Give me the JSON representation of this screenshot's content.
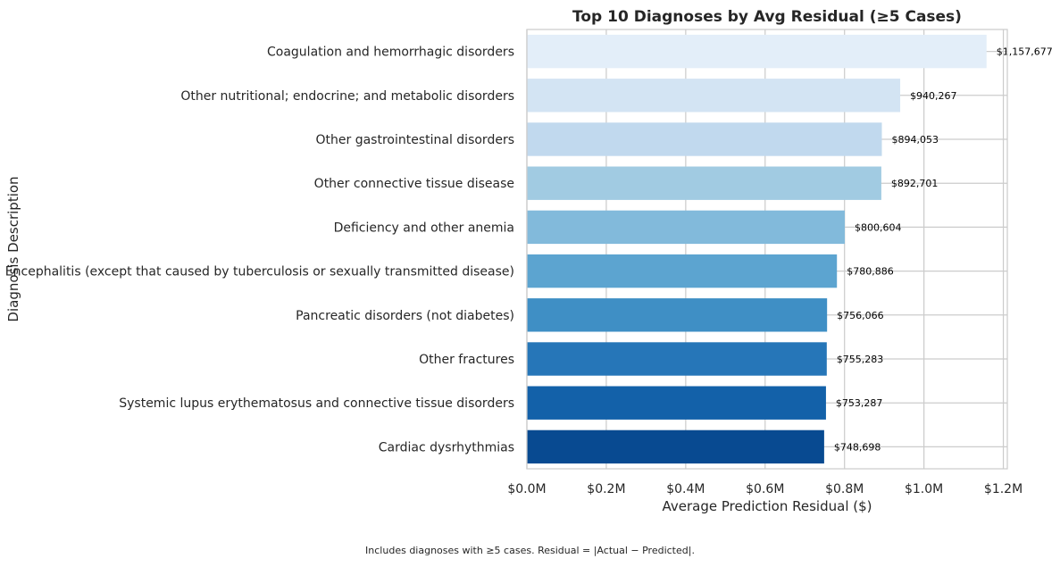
{
  "chart_data": {
    "type": "bar",
    "orientation": "horizontal",
    "title": "Top 10 Diagnoses by Avg Residual (≥5 Cases)",
    "xlabel": "Average Prediction Residual ($)",
    "ylabel": "Diagnosis Description",
    "xlim": [
      0,
      1210000
    ],
    "xticks": [
      0,
      200000,
      400000,
      600000,
      800000,
      1000000,
      1200000
    ],
    "xtick_labels": [
      "$0.0M",
      "$0.2M",
      "$0.4M",
      "$0.6M",
      "$0.8M",
      "$1.0M",
      "$1.2M"
    ],
    "grid": true,
    "categories": [
      "Coagulation and hemorrhagic disorders",
      "Other nutritional; endocrine; and metabolic disorders",
      "Other gastrointestinal disorders",
      "Other connective tissue disease",
      "Deficiency and other anemia",
      "Encephalitis (except that caused by tuberculosis or sexually transmitted disease)",
      "Pancreatic disorders (not diabetes)",
      "Other fractures",
      "Systemic lupus erythematosus and connective tissue disorders",
      "Cardiac dysrhythmias"
    ],
    "values": [
      1157677,
      940267,
      894053,
      892701,
      800604,
      780886,
      756066,
      755283,
      753287,
      748698
    ],
    "data_labels": [
      "$1,157,677",
      "$940,267",
      "$894,053",
      "$892,701",
      "$800,604",
      "$780,886",
      "$756,066",
      "$755,283",
      "$753,287",
      "$748,698"
    ],
    "colors": [
      "#e3eef9",
      "#d3e4f3",
      "#c1d9ee",
      "#a1cbe2",
      "#82badb",
      "#5ca4d0",
      "#3f8fc5",
      "#2676b8",
      "#1361a9",
      "#084a91"
    ]
  },
  "footnote": "Includes diagnoses with ≥5 cases. Residual = |Actual − Predicted|."
}
